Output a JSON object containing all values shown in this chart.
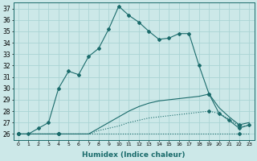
{
  "xlabel": "Humidex (Indice chaleur)",
  "bg_color": "#cce8e8",
  "grid_color": "#aad4d4",
  "line_color": "#1a6b6b",
  "xlim": [
    -0.5,
    23.5
  ],
  "ylim": [
    25.5,
    37.5
  ],
  "xticks": [
    0,
    1,
    2,
    3,
    4,
    5,
    6,
    7,
    8,
    9,
    10,
    11,
    12,
    13,
    14,
    15,
    16,
    17,
    18,
    19,
    20,
    21,
    22,
    23
  ],
  "yticks": [
    26,
    27,
    28,
    29,
    30,
    31,
    32,
    33,
    34,
    35,
    36,
    37
  ],
  "line1_x": [
    0,
    1,
    2,
    3,
    4,
    5,
    6,
    7,
    8,
    9,
    10,
    11,
    12,
    13,
    14,
    15,
    16,
    17,
    18,
    19,
    20,
    21,
    22,
    23
  ],
  "line1_y": [
    26,
    26,
    26,
    26,
    26,
    26,
    26,
    26,
    26,
    26,
    26,
    26,
    26,
    26,
    26,
    26,
    26,
    26,
    26,
    26,
    26,
    26,
    26,
    26
  ],
  "line2_x": [
    0,
    1,
    2,
    3,
    4,
    5,
    6,
    7,
    8,
    9,
    10,
    11,
    12,
    13,
    14,
    15,
    16,
    17,
    18,
    19,
    20,
    21,
    22,
    23
  ],
  "line2_y": [
    26,
    26,
    26,
    26,
    26,
    26,
    26,
    26,
    26.3,
    26.5,
    26.7,
    27.0,
    27.2,
    27.4,
    27.5,
    27.6,
    27.7,
    27.8,
    27.9,
    28.0,
    27.8,
    27.3,
    26.7,
    26.7
  ],
  "line3_x": [
    0,
    1,
    2,
    3,
    4,
    5,
    6,
    7,
    8,
    9,
    10,
    11,
    12,
    13,
    14,
    15,
    16,
    17,
    18,
    19,
    20,
    21,
    22,
    23
  ],
  "line3_y": [
    26,
    26,
    26,
    26,
    26,
    26,
    26,
    26,
    26.5,
    27.0,
    27.5,
    28.0,
    28.4,
    28.7,
    28.9,
    29.0,
    29.1,
    29.2,
    29.3,
    29.5,
    28.3,
    27.5,
    26.8,
    27.0
  ],
  "line4_x": [
    0,
    1,
    2,
    3,
    4,
    5,
    6,
    7,
    8,
    9,
    10,
    11,
    12,
    13,
    14,
    15,
    16,
    17,
    18,
    19,
    20,
    21,
    22,
    23
  ],
  "line4_y": [
    26,
    26,
    26.5,
    27,
    30,
    31.5,
    31.2,
    32.8,
    33.5,
    35.2,
    37.2,
    36.4,
    35.8,
    35.0,
    34.3,
    34.4,
    34.8,
    34.8,
    32.0,
    29.5,
    27.8,
    27.2,
    26.5,
    26.8
  ]
}
